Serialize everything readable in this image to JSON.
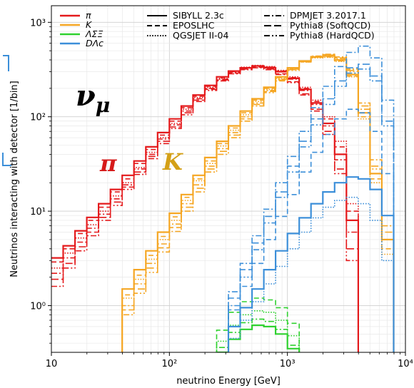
{
  "chart_data": {
    "type": "line",
    "xlabel": "neutrino Energy [GeV]",
    "ylabel": "Neutrinos interacting with detector [1/bin]",
    "xscale": "log",
    "yscale": "log",
    "xlim": [
      10,
      10000
    ],
    "ylim": [
      0.32,
      1500
    ],
    "grid": true,
    "legend_placement": "top",
    "x_ticks": [
      {
        "value": 10,
        "label": "10"
      },
      {
        "value": 100,
        "label": "10²"
      },
      {
        "value": 1000,
        "label": "10³"
      },
      {
        "value": 10000,
        "label": "10⁴"
      }
    ],
    "y_ticks": [
      {
        "value": 1,
        "label": "10⁰"
      },
      {
        "value": 10,
        "label": "10¹"
      },
      {
        "value": 100,
        "label": "10²"
      },
      {
        "value": 1000,
        "label": "10³"
      }
    ],
    "annotations": [
      {
        "text": "ν",
        "sub": "μ",
        "color": "#000000"
      },
      {
        "text": "π",
        "color": "#d61a1a"
      },
      {
        "text": "K",
        "color": "#d4a017"
      }
    ],
    "legend_particles": [
      {
        "label": "π",
        "color": "#e41a1c"
      },
      {
        "label": "K",
        "color": "#f5a623"
      },
      {
        "label": "ΛΣΞ",
        "color": "#2fd12f"
      },
      {
        "label": "DΛc",
        "color": "#3c8fd9"
      }
    ],
    "legend_generators": [
      {
        "label": "SIBYLL 2.3c",
        "dash": "solid"
      },
      {
        "label": "EPOSLHC",
        "dash": "dashed"
      },
      {
        "label": "QGSJET II-04",
        "dash": "dotted"
      },
      {
        "label": "DPMJET 3.2017.1",
        "dash": "dashdot"
      },
      {
        "label": "Pythia8 (SoftQCD)",
        "dash": "longdash"
      },
      {
        "label": "Pythia8 (HardQCD)",
        "dash": "dashdotdot"
      }
    ],
    "bin_edges": [
      10,
      12.59,
      15.85,
      19.95,
      25.12,
      31.62,
      39.81,
      50.12,
      63.1,
      79.43,
      100,
      125.9,
      158.5,
      199.5,
      251.2,
      316.2,
      398.1,
      501.2,
      631,
      794.3,
      1000,
      1259,
      1585,
      1995,
      2512,
      3162,
      3981,
      5012,
      6310,
      7943,
      10000
    ],
    "series": [
      {
        "particle": "π",
        "generator": "SIBYLL 2.3c",
        "color": "#e41a1c",
        "dash": "solid",
        "values": [
          3.2,
          4.3,
          6.2,
          8.6,
          12,
          17,
          24,
          34,
          48,
          68,
          95,
          130,
          170,
          215,
          265,
          305,
          330,
          345,
          330,
          300,
          255,
          195,
          140,
          85,
          40,
          8,
          0.25,
          0.25,
          0.25,
          0.25
        ]
      },
      {
        "particle": "π",
        "generator": "EPOSLHC",
        "color": "#e41a1c",
        "dash": "dashed",
        "values": [
          2.9,
          4.0,
          5.8,
          8.0,
          11,
          16,
          22,
          32,
          45,
          64,
          90,
          125,
          165,
          210,
          260,
          300,
          330,
          345,
          335,
          305,
          260,
          200,
          145,
          95,
          48,
          10,
          0.25,
          0.25,
          0.25,
          0.25
        ]
      },
      {
        "particle": "π",
        "generator": "QGSJET II-04",
        "color": "#e41a1c",
        "dash": "dotted",
        "values": [
          2.5,
          3.6,
          5.2,
          7.2,
          10,
          14.5,
          20,
          29,
          42,
          60,
          85,
          120,
          160,
          205,
          255,
          300,
          335,
          350,
          340,
          310,
          265,
          205,
          150,
          100,
          55,
          12,
          0.25,
          0.25,
          0.25,
          0.25
        ]
      },
      {
        "particle": "π",
        "generator": "DPMJET 3.2017.1",
        "color": "#e41a1c",
        "dash": "dashdot",
        "values": [
          2.2,
          3.2,
          4.7,
          6.6,
          9.3,
          13.5,
          19,
          28,
          40,
          58,
          82,
          115,
          155,
          200,
          250,
          295,
          330,
          345,
          335,
          300,
          250,
          190,
          135,
          80,
          35,
          6,
          0.25,
          0.25,
          0.25,
          0.25
        ]
      },
      {
        "particle": "π",
        "generator": "Pythia8 (SoftQCD)",
        "color": "#e41a1c",
        "dash": "longdash",
        "values": [
          1.9,
          2.8,
          4.2,
          6.0,
          8.6,
          12.5,
          18,
          26,
          38,
          55,
          78,
          110,
          150,
          195,
          245,
          290,
          320,
          335,
          320,
          285,
          235,
          175,
          120,
          70,
          28,
          4,
          0.25,
          0.25,
          0.25,
          0.25
        ]
      },
      {
        "particle": "π",
        "generator": "Pythia8 (HardQCD)",
        "color": "#e41a1c",
        "dash": "dashdotdot",
        "values": [
          1.6,
          2.5,
          3.8,
          5.5,
          8.0,
          11.5,
          17,
          24.5,
          36,
          52,
          75,
          105,
          145,
          190,
          240,
          285,
          315,
          330,
          315,
          280,
          230,
          170,
          115,
          65,
          25,
          3,
          0.25,
          0.25,
          0.25,
          0.25
        ]
      },
      {
        "particle": "K",
        "generator": "SIBYLL 2.3c",
        "color": "#f5a623",
        "dash": "solid",
        "values": [
          0.25,
          0.25,
          0.25,
          0.25,
          0.25,
          0.25,
          1.5,
          2.4,
          3.8,
          6.0,
          9.5,
          15,
          24,
          37,
          55,
          80,
          115,
          155,
          205,
          265,
          330,
          390,
          430,
          440,
          400,
          280,
          110,
          25,
          5,
          0.25
        ]
      },
      {
        "particle": "K",
        "generator": "EPOSLHC",
        "color": "#f5a623",
        "dash": "dashed",
        "values": [
          0.25,
          0.25,
          0.25,
          0.25,
          0.25,
          0.25,
          1.3,
          2.1,
          3.4,
          5.4,
          8.7,
          14,
          22,
          34,
          52,
          76,
          110,
          150,
          200,
          260,
          325,
          385,
          425,
          430,
          390,
          270,
          100,
          22,
          4,
          0.25
        ]
      },
      {
        "particle": "K",
        "generator": "QGSJET II-04",
        "color": "#f5a623",
        "dash": "dotted",
        "values": [
          0.25,
          0.25,
          0.25,
          0.25,
          0.25,
          0.25,
          1.2,
          1.9,
          3.1,
          5.0,
          8.0,
          13,
          21,
          32,
          49,
          72,
          105,
          145,
          195,
          255,
          320,
          380,
          420,
          425,
          385,
          265,
          95,
          20,
          3.5,
          0.25
        ]
      },
      {
        "particle": "K",
        "generator": "DPMJET 3.2017.1",
        "color": "#f5a623",
        "dash": "dashdot",
        "values": [
          0.25,
          0.25,
          0.25,
          0.25,
          0.25,
          0.25,
          1.0,
          1.7,
          2.8,
          4.5,
          7.3,
          12,
          19,
          30,
          46,
          68,
          100,
          140,
          190,
          250,
          320,
          390,
          440,
          460,
          430,
          320,
          140,
          35,
          7,
          0.25
        ]
      },
      {
        "particle": "K",
        "generator": "Pythia8 (SoftQCD)",
        "color": "#f5a623",
        "dash": "longdash",
        "values": [
          0.25,
          0.25,
          0.25,
          0.25,
          0.25,
          0.25,
          0.9,
          1.5,
          2.5,
          4.1,
          6.7,
          11,
          17.5,
          28,
          43,
          64,
          95,
          135,
          185,
          245,
          315,
          385,
          435,
          455,
          420,
          310,
          130,
          30,
          6,
          0.25
        ]
      },
      {
        "particle": "K",
        "generator": "Pythia8 (HardQCD)",
        "color": "#f5a623",
        "dash": "dashdotdot",
        "values": [
          0.25,
          0.25,
          0.25,
          0.25,
          0.25,
          0.25,
          0.8,
          1.35,
          2.25,
          3.7,
          6.1,
          10,
          16,
          26,
          40,
          60,
          90,
          130,
          180,
          240,
          310,
          380,
          430,
          450,
          415,
          300,
          120,
          28,
          5,
          0.25
        ]
      },
      {
        "particle": "ΛΣΞ",
        "generator": "SIBYLL 2.3c",
        "color": "#2fd12f",
        "dash": "solid",
        "values": [
          0.25,
          0.25,
          0.25,
          0.25,
          0.25,
          0.25,
          0.25,
          0.25,
          0.25,
          0.25,
          0.25,
          0.25,
          0.25,
          0.25,
          0.32,
          0.44,
          0.56,
          0.62,
          0.6,
          0.5,
          0.35,
          0.25,
          0.25,
          0.25,
          0.25,
          0.25,
          0.25,
          0.25,
          0.25,
          0.25
        ]
      },
      {
        "particle": "ΛΣΞ",
        "generator": "EPOSLHC",
        "color": "#2fd12f",
        "dash": "dashed",
        "values": [
          0.25,
          0.25,
          0.25,
          0.25,
          0.25,
          0.25,
          0.25,
          0.25,
          0.25,
          0.25,
          0.25,
          0.25,
          0.25,
          0.25,
          0.55,
          0.85,
          1.1,
          1.2,
          1.15,
          0.95,
          0.65,
          0.25,
          0.25,
          0.25,
          0.25,
          0.25,
          0.25,
          0.25,
          0.25,
          0.25
        ]
      },
      {
        "particle": "ΛΣΞ",
        "generator": "QGSJET II-04",
        "color": "#2fd12f",
        "dash": "dotted",
        "values": [
          0.25,
          0.25,
          0.25,
          0.25,
          0.25,
          0.25,
          0.25,
          0.25,
          0.25,
          0.25,
          0.25,
          0.25,
          0.25,
          0.25,
          0.42,
          0.62,
          0.8,
          0.88,
          0.85,
          0.7,
          0.48,
          0.25,
          0.25,
          0.25,
          0.25,
          0.25,
          0.25,
          0.25,
          0.25,
          0.25
        ]
      },
      {
        "particle": "ΛΣΞ",
        "generator": "DPMJET 3.2017.1",
        "color": "#2fd12f",
        "dash": "dashdot",
        "values": [
          0.25,
          0.25,
          0.25,
          0.25,
          0.25,
          0.25,
          0.25,
          0.25,
          0.25,
          0.25,
          0.25,
          0.25,
          0.25,
          0.25,
          0.36,
          0.52,
          0.66,
          0.72,
          0.68,
          0.56,
          0.38,
          0.25,
          0.25,
          0.25,
          0.25,
          0.25,
          0.25,
          0.25,
          0.25,
          0.25
        ]
      },
      {
        "particle": "DΛc",
        "generator": "SIBYLL 2.3c",
        "color": "#3c8fd9",
        "dash": "solid",
        "values": [
          0.25,
          0.25,
          0.25,
          0.25,
          0.25,
          0.25,
          0.25,
          0.25,
          0.25,
          0.25,
          0.25,
          0.25,
          0.25,
          0.25,
          0.25,
          0.6,
          0.95,
          1.5,
          2.4,
          3.8,
          5.8,
          8.5,
          12,
          16,
          20,
          23,
          22,
          17,
          9,
          0.25
        ]
      },
      {
        "particle": "DΛc",
        "generator": "EPOSLHC",
        "color": "#3c8fd9",
        "dash": "dashed",
        "values": [
          0.25,
          0.25,
          0.25,
          0.25,
          0.25,
          0.25,
          0.25,
          0.25,
          0.25,
          0.25,
          0.25,
          0.25,
          0.25,
          0.25,
          0.25,
          0.9,
          1.6,
          2.8,
          5,
          8.8,
          15,
          26,
          42,
          65,
          95,
          120,
          110,
          70,
          25,
          0.25
        ]
      },
      {
        "particle": "DΛc",
        "generator": "QGSJET II-04",
        "color": "#3c8fd9",
        "dash": "dotted",
        "values": [
          0.25,
          0.25,
          0.25,
          0.25,
          0.25,
          0.25,
          0.25,
          0.25,
          0.25,
          0.25,
          0.25,
          0.25,
          0.25,
          0.25,
          0.25,
          0.45,
          0.7,
          1.1,
          1.7,
          2.6,
          4.0,
          6.0,
          8.5,
          11,
          13,
          14,
          12,
          8,
          3,
          0.25
        ]
      },
      {
        "particle": "DΛc",
        "generator": "DPMJET 3.2017.1",
        "color": "#3c8fd9",
        "dash": "dashdot",
        "values": [
          0.25,
          0.25,
          0.25,
          0.25,
          0.25,
          0.25,
          0.25,
          0.25,
          0.25,
          0.25,
          0.25,
          0.25,
          0.25,
          0.25,
          0.25,
          1.4,
          2.8,
          5.5,
          10.5,
          20,
          38,
          70,
          125,
          210,
          340,
          480,
          560,
          420,
          150,
          0.25
        ]
      },
      {
        "particle": "DΛc",
        "generator": "Pythia8 (SoftQCD)",
        "color": "#3c8fd9",
        "dash": "longdash",
        "values": [
          0.25,
          0.25,
          0.25,
          0.25,
          0.25,
          0.25,
          0.25,
          0.25,
          0.25,
          0.25,
          0.25,
          0.25,
          0.25,
          0.25,
          0.25,
          1.2,
          2.4,
          4.6,
          8.8,
          16,
          30,
          55,
          95,
          155,
          240,
          330,
          360,
          270,
          90,
          0.25
        ]
      },
      {
        "particle": "DΛc",
        "generator": "Pythia8 (HardQCD)",
        "color": "#3c8fd9",
        "dash": "dashdotdot",
        "values": [
          0.25,
          0.25,
          0.25,
          0.25,
          0.25,
          0.25,
          0.25,
          0.25,
          0.25,
          0.25,
          0.25,
          0.25,
          0.25,
          0.25,
          0.25,
          1.0,
          2.0,
          3.9,
          7.5,
          14,
          26,
          48,
          82,
          135,
          210,
          290,
          320,
          240,
          80,
          0.25
        ]
      }
    ]
  }
}
